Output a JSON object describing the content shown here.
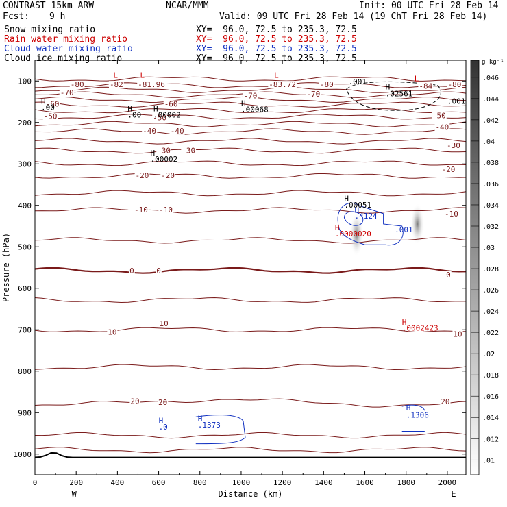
{
  "header": {
    "model": "CONTRAST 15km ARW",
    "org": "NCAR/MMM",
    "init": "Init: 00 UTC Fri 28 Feb 14",
    "fcst_label": "Fcst:",
    "fcst_value": "9 h",
    "valid": "Valid: 09 UTC Fri 28 Feb 14 (19 ChT Fri 28 Feb 14)",
    "fields": [
      {
        "name": "Snow mixing ratio",
        "xy": "XY=  96.0, 72.5 to 235.3, 72.5",
        "color": "#000000"
      },
      {
        "name": "Rain water mixing ratio",
        "xy": "XY=  96.0, 72.5 to 235.3, 72.5",
        "color": "#cc0000"
      },
      {
        "name": "Cloud water mixing ratio",
        "xy": "XY=  96.0, 72.5 to 235.3, 72.5",
        "color": "#1030c0"
      },
      {
        "name": "Cloud ice mixing ratio",
        "xy": "XY=  96.0, 72.5 to 235.3, 72.5",
        "color": "#000000"
      }
    ]
  },
  "chart_data": {
    "type": "line",
    "xlabel": "Distance (km)",
    "ylabel": "Pressure (hPa)",
    "xlim": [
      0,
      2090
    ],
    "ylim": [
      1050,
      50
    ],
    "x_ticks": [
      0,
      200,
      400,
      600,
      800,
      1000,
      1200,
      1400,
      1600,
      1800,
      2000
    ],
    "y_ticks": [
      100,
      200,
      300,
      400,
      500,
      600,
      700,
      800,
      900,
      1000
    ],
    "x_end_labels": {
      "left": "W",
      "right": "E"
    },
    "colorbar": {
      "unit": "g kg⁻¹",
      "ticks": [
        ".01",
        ".012",
        ".014",
        ".016",
        ".018",
        ".02",
        ".022",
        ".024",
        ".026",
        ".028",
        ".03",
        ".032",
        ".034",
        ".036",
        ".038",
        ".04",
        ".042",
        ".044",
        ".046"
      ]
    },
    "temperature_contours": [
      {
        "value": -80,
        "p": 110
      },
      {
        "value": -70,
        "p": 133
      },
      {
        "value": -60,
        "p": 157
      },
      {
        "value": -50,
        "p": 186
      },
      {
        "value": -40,
        "p": 222
      },
      {
        "value": -30,
        "p": 268
      },
      {
        "value": -20,
        "p": 329
      },
      {
        "value": -10,
        "p": 412
      },
      {
        "value": 0,
        "p": 557
      },
      {
        "value": 10,
        "p": 700
      },
      {
        "value": 20,
        "p": 880
      }
    ],
    "contour_labels": [
      {
        "text": "-80",
        "x": 205,
        "p": 113
      },
      {
        "text": "-82",
        "x": 395,
        "p": 113
      },
      {
        "text": "-81.96",
        "x": 565,
        "p": 113
      },
      {
        "text": "-83.72",
        "x": 1200,
        "p": 113
      },
      {
        "text": "-80",
        "x": 1415,
        "p": 113
      },
      {
        "text": "-80",
        "x": 2035,
        "p": 113
      },
      {
        "text": "-84",
        "x": 1895,
        "p": 117
      },
      {
        "text": "-70",
        "x": 155,
        "p": 133
      },
      {
        "text": "-70",
        "x": 1045,
        "p": 140
      },
      {
        "text": "-70",
        "x": 1350,
        "p": 136
      },
      {
        "text": "-60",
        "x": 85,
        "p": 160
      },
      {
        "text": "-60",
        "x": 660,
        "p": 160
      },
      {
        "text": "-50",
        "x": 75,
        "p": 190
      },
      {
        "text": "-50",
        "x": 605,
        "p": 193
      },
      {
        "text": "-50",
        "x": 1960,
        "p": 188
      },
      {
        "text": "-40",
        "x": 555,
        "p": 225
      },
      {
        "text": "-40",
        "x": 690,
        "p": 225
      },
      {
        "text": "-40",
        "x": 1975,
        "p": 216
      },
      {
        "text": "-30",
        "x": 625,
        "p": 272
      },
      {
        "text": "-30",
        "x": 745,
        "p": 272
      },
      {
        "text": "-30",
        "x": 2030,
        "p": 260
      },
      {
        "text": "-20",
        "x": 520,
        "p": 333
      },
      {
        "text": "-20",
        "x": 645,
        "p": 333
      },
      {
        "text": "-20",
        "x": 2005,
        "p": 318
      },
      {
        "text": "-10",
        "x": 515,
        "p": 415
      },
      {
        "text": "-10",
        "x": 635,
        "p": 415
      },
      {
        "text": "-10",
        "x": 2020,
        "p": 425
      },
      {
        "text": "0",
        "x": 470,
        "p": 562
      },
      {
        "text": "0",
        "x": 600,
        "p": 562
      },
      {
        "text": "0",
        "x": 2005,
        "p": 572
      },
      {
        "text": "10",
        "x": 375,
        "p": 710
      },
      {
        "text": "10",
        "x": 625,
        "p": 690
      },
      {
        "text": "10",
        "x": 2050,
        "p": 715
      },
      {
        "text": "20",
        "x": 485,
        "p": 877
      },
      {
        "text": "20",
        "x": 620,
        "p": 880
      },
      {
        "text": "20",
        "x": 1990,
        "p": 878
      }
    ],
    "extrema_labels": [
      {
        "text": "L",
        "x": 380,
        "p": 92,
        "color": "#cc0000"
      },
      {
        "text": "L",
        "x": 510,
        "p": 92,
        "color": "#cc0000"
      },
      {
        "text": "L",
        "x": 1160,
        "p": 92,
        "color": "#cc0000"
      },
      {
        "text": "L",
        "x": 1840,
        "p": 100,
        "color": "#cc0000"
      },
      {
        "text": "H",
        "x": 30,
        "p": 155,
        "color": "#000000"
      },
      {
        "text": ".00",
        "x": 30,
        "p": 170,
        "color": "#000000"
      },
      {
        "text": "H",
        "x": 450,
        "p": 173,
        "color": "#000000"
      },
      {
        "text": ".00",
        "x": 450,
        "p": 188,
        "color": "#000000"
      },
      {
        "text": "H",
        "x": 575,
        "p": 173,
        "color": "#000000"
      },
      {
        "text": ".00002",
        "x": 575,
        "p": 188,
        "color": "#000000"
      },
      {
        "text": "H",
        "x": 1000,
        "p": 160,
        "color": "#000000"
      },
      {
        "text": ".00068",
        "x": 1000,
        "p": 175,
        "color": "#000000"
      },
      {
        "text": "H",
        "x": 560,
        "p": 280,
        "color": "#000000"
      },
      {
        "text": ".00002",
        "x": 560,
        "p": 295,
        "color": "#000000"
      },
      {
        "text": ".001",
        "x": 1520,
        "p": 108,
        "color": "#000000"
      },
      {
        "text": "H",
        "x": 1700,
        "p": 120,
        "color": "#000000"
      },
      {
        "text": ".02561",
        "x": 1700,
        "p": 137,
        "color": "#000000"
      },
      {
        "text": ".001",
        "x": 2000,
        "p": 155,
        "color": "#000000"
      },
      {
        "text": "H",
        "x": 1500,
        "p": 390,
        "color": "#000000"
      },
      {
        "text": ".00051",
        "x": 1500,
        "p": 405,
        "color": "#000000"
      },
      {
        "text": "H",
        "x": 1550,
        "p": 418,
        "color": "#1030c0"
      },
      {
        "text": ".4124",
        "x": 1550,
        "p": 432,
        "color": "#1030c0"
      },
      {
        "text": "H",
        "x": 1455,
        "p": 460,
        "color": "#cc0000"
      },
      {
        "text": ".0000020",
        "x": 1455,
        "p": 475,
        "color": "#cc0000"
      },
      {
        "text": ".001",
        "x": 1745,
        "p": 465,
        "color": "#1030c0"
      },
      {
        "text": "H",
        "x": 1780,
        "p": 688,
        "color": "#cc0000"
      },
      {
        "text": ".0002423",
        "x": 1780,
        "p": 702,
        "color": "#cc0000"
      },
      {
        "text": "H",
        "x": 600,
        "p": 925,
        "color": "#1030c0"
      },
      {
        "text": ".0",
        "x": 600,
        "p": 941,
        "color": "#1030c0"
      },
      {
        "text": "H",
        "x": 790,
        "p": 920,
        "color": "#1030c0"
      },
      {
        "text": ".1373",
        "x": 790,
        "p": 936,
        "color": "#1030c0"
      },
      {
        "text": "H",
        "x": 1800,
        "p": 895,
        "color": "#1030c0"
      },
      {
        "text": ".1306",
        "x": 1800,
        "p": 912,
        "color": "#1030c0"
      }
    ]
  }
}
